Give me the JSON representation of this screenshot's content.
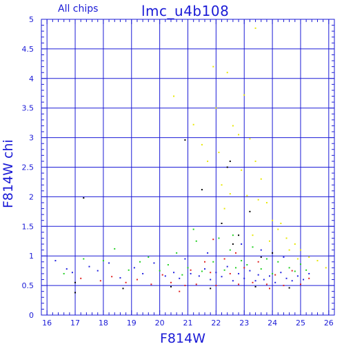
{
  "chart_data": {
    "type": "scatter",
    "title": "lmc_u4b108",
    "subtitle": "All chips",
    "xlabel": "F814W",
    "ylabel": "F814W chi",
    "xlim": [
      15.8,
      26.2
    ],
    "ylim": [
      0,
      5
    ],
    "xticks": [
      "16",
      "17",
      "18",
      "19",
      "20",
      "21",
      "22",
      "23",
      "24",
      "25",
      "26"
    ],
    "yticks": [
      "0",
      "0.5",
      "1",
      "1.5",
      "2",
      "2.5",
      "3",
      "3.5",
      "4",
      "4.5",
      "5"
    ],
    "grid": true,
    "colors": {
      "axis": "#1a1ad6",
      "grid": "#1a1ad6",
      "chip1": "#2020e0",
      "chip2": "#20d020",
      "chip3": "#e02020",
      "chip4": "#000000",
      "outliers": "#e8e800"
    },
    "series": [
      {
        "values": [
          [
            16.3,
            0.92
          ],
          [
            16.7,
            0.78
          ],
          [
            16.9,
            0.72
          ],
          [
            17.5,
            0.82
          ],
          [
            17.8,
            0.75
          ],
          [
            18.2,
            0.88
          ],
          [
            18.6,
            0.63
          ],
          [
            19.1,
            0.8
          ],
          [
            19.4,
            0.7
          ],
          [
            19.8,
            0.88
          ],
          [
            20.2,
            0.66
          ],
          [
            20.5,
            0.72
          ],
          [
            20.7,
            0.62
          ],
          [
            20.9,
            0.95
          ],
          [
            21.1,
            0.7
          ],
          [
            21.4,
            0.66
          ],
          [
            21.6,
            0.78
          ],
          [
            21.8,
            0.6
          ],
          [
            22.0,
            0.72
          ],
          [
            22.2,
            0.65
          ],
          [
            22.4,
            0.82
          ],
          [
            22.6,
            0.58
          ],
          [
            22.8,
            0.7
          ],
          [
            23.0,
            0.62
          ],
          [
            23.2,
            0.75
          ],
          [
            23.4,
            0.58
          ],
          [
            23.5,
            0.68
          ],
          [
            23.7,
            0.6
          ],
          [
            23.9,
            0.66
          ],
          [
            24.1,
            0.55
          ],
          [
            24.3,
            0.72
          ],
          [
            24.5,
            0.62
          ],
          [
            24.7,
            0.58
          ],
          [
            24.9,
            0.66
          ],
          [
            25.1,
            0.6
          ],
          [
            25.3,
            0.7
          ],
          [
            23.6,
            1.1
          ],
          [
            24.4,
            0.98
          ],
          [
            21.7,
            1.05
          ],
          [
            22.9,
            1.2
          ]
        ]
      },
      {
        "values": [
          [
            16.6,
            0.7
          ],
          [
            17.3,
            0.95
          ],
          [
            18.0,
            0.92
          ],
          [
            18.4,
            1.12
          ],
          [
            18.9,
            0.76
          ],
          [
            19.3,
            0.9
          ],
          [
            19.6,
            0.98
          ],
          [
            20.0,
            0.75
          ],
          [
            20.3,
            0.85
          ],
          [
            20.6,
            1.05
          ],
          [
            20.8,
            0.68
          ],
          [
            21.0,
            0.8
          ],
          [
            21.3,
            1.25
          ],
          [
            21.5,
            0.74
          ],
          [
            21.9,
            0.9
          ],
          [
            22.1,
            1.3
          ],
          [
            22.3,
            0.76
          ],
          [
            22.5,
            1.1
          ],
          [
            22.7,
            0.8
          ],
          [
            22.9,
            0.92
          ],
          [
            23.1,
            0.85
          ],
          [
            23.3,
            1.15
          ],
          [
            23.6,
            0.78
          ],
          [
            23.8,
            0.95
          ],
          [
            24.0,
            0.7
          ],
          [
            24.2,
            0.9
          ],
          [
            24.6,
            0.8
          ],
          [
            24.8,
            0.74
          ],
          [
            25.0,
            0.86
          ],
          [
            25.2,
            0.76
          ],
          [
            21.2,
            1.45
          ],
          [
            22.6,
            1.35
          ]
        ]
      },
      {
        "values": [
          [
            17.2,
            0.62
          ],
          [
            17.9,
            0.58
          ],
          [
            18.3,
            0.65
          ],
          [
            18.8,
            0.55
          ],
          [
            19.2,
            0.6
          ],
          [
            19.7,
            0.52
          ],
          [
            20.1,
            0.68
          ],
          [
            20.4,
            0.55
          ],
          [
            20.9,
            0.5
          ],
          [
            21.1,
            0.76
          ],
          [
            21.3,
            0.52
          ],
          [
            21.6,
            0.9
          ],
          [
            21.8,
            0.72
          ],
          [
            22.0,
            0.5
          ],
          [
            22.3,
            0.95
          ],
          [
            22.5,
            0.7
          ],
          [
            22.8,
            0.52
          ],
          [
            23.0,
            0.8
          ],
          [
            23.3,
            0.55
          ],
          [
            23.5,
            0.9
          ],
          [
            23.8,
            0.52
          ],
          [
            24.1,
            0.68
          ],
          [
            24.4,
            0.5
          ],
          [
            24.7,
            0.75
          ],
          [
            25.0,
            0.52
          ],
          [
            25.3,
            0.62
          ],
          [
            20.7,
            0.4
          ],
          [
            21.9,
            1.28
          ],
          [
            22.7,
            1.05
          ],
          [
            23.9,
            0.45
          ]
        ]
      },
      {
        "values": [
          [
            17.0,
            0.38
          ],
          [
            17.3,
            1.98
          ],
          [
            17.0,
            0.55
          ],
          [
            18.7,
            0.45
          ],
          [
            20.4,
            0.48
          ],
          [
            20.9,
            2.96
          ],
          [
            21.5,
            2.12
          ],
          [
            22.2,
            1.55
          ],
          [
            22.4,
            2.5
          ],
          [
            22.5,
            2.6
          ],
          [
            22.6,
            1.2
          ],
          [
            22.8,
            1.35
          ],
          [
            23.2,
            1.75
          ],
          [
            23.6,
            0.98
          ],
          [
            24.0,
            1.05
          ],
          [
            21.8,
            0.45
          ],
          [
            23.4,
            0.48
          ],
          [
            24.6,
            0.46
          ]
        ]
      },
      {
        "values": [
          [
            21.2,
            3.22
          ],
          [
            21.5,
            2.88
          ],
          [
            21.9,
            4.2
          ],
          [
            22.0,
            3.5
          ],
          [
            22.2,
            2.2
          ],
          [
            22.4,
            4.1
          ],
          [
            22.6,
            3.2
          ],
          [
            22.8,
            3.05
          ],
          [
            22.9,
            2.45
          ],
          [
            23.0,
            3.72
          ],
          [
            23.2,
            2.98
          ],
          [
            23.4,
            2.6
          ],
          [
            23.6,
            2.3
          ],
          [
            23.8,
            1.9
          ],
          [
            24.0,
            1.6
          ],
          [
            24.2,
            1.45
          ],
          [
            24.5,
            1.3
          ],
          [
            24.8,
            1.2
          ],
          [
            25.0,
            1.1
          ],
          [
            25.3,
            0.98
          ],
          [
            25.6,
            0.92
          ],
          [
            25.9,
            0.8
          ],
          [
            23.1,
            2.02
          ],
          [
            22.3,
            1.8
          ],
          [
            21.7,
            2.6
          ],
          [
            22.5,
            2.05
          ],
          [
            23.5,
            1.95
          ],
          [
            24.3,
            1.55
          ],
          [
            23.9,
            1.25
          ],
          [
            24.6,
            1.1
          ],
          [
            23.3,
            1.35
          ],
          [
            24.9,
            0.95
          ],
          [
            20.5,
            3.7
          ],
          [
            23.4,
            4.85
          ],
          [
            22.1,
            2.75
          ]
        ]
      }
    ]
  }
}
